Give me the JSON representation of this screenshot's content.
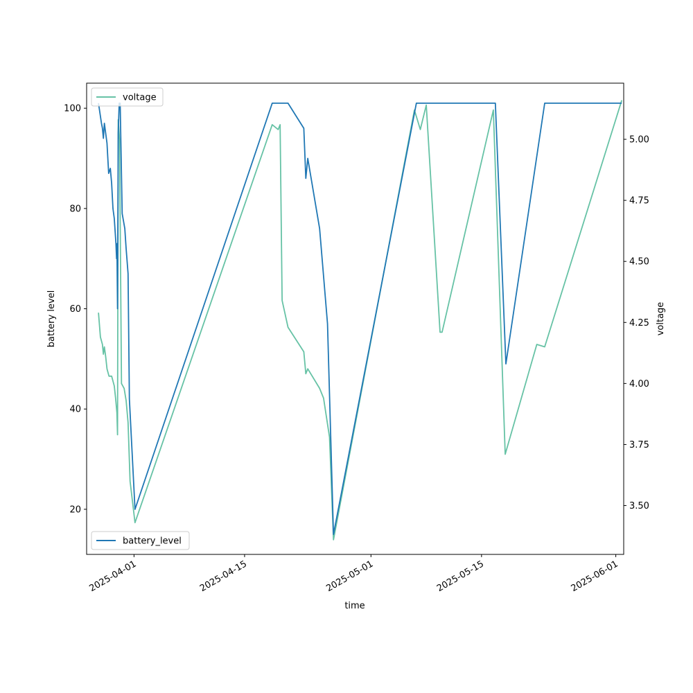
{
  "chart_data": {
    "type": "line",
    "xlabel": "time",
    "ylabel_left": "battery level",
    "ylabel_right": "voltage",
    "xlim": [
      "2025-03-26",
      "2025-06-02"
    ],
    "ylim_left": [
      11,
      105
    ],
    "ylim_right": [
      3.3,
      5.23
    ],
    "x_ticks": [
      "2025-04-01",
      "2025-04-15",
      "2025-05-01",
      "2025-05-15",
      "2025-06-01"
    ],
    "y_left_ticks": [
      20,
      40,
      60,
      80,
      100
    ],
    "y_right_ticks": [
      3.5,
      3.75,
      4.0,
      4.25,
      4.5,
      4.75,
      5.0
    ],
    "y_right_tick_labels": [
      "3.50",
      "3.75",
      "4.00",
      "4.25",
      "4.50",
      "4.75",
      "5.00"
    ],
    "grid": false,
    "legends": [
      {
        "placement": "top-left",
        "series": "voltage"
      },
      {
        "placement": "bottom-left",
        "series": "battery_level"
      }
    ],
    "series": [
      {
        "name": "battery_level",
        "axis": "left",
        "color": "#1f77b4",
        "points": [
          [
            "2025-03-27 12:00",
            101
          ],
          [
            "2025-03-27 21:00",
            97
          ],
          [
            "2025-03-28 00:00",
            96
          ],
          [
            "2025-03-28 03:00",
            94
          ],
          [
            "2025-03-28 06:00",
            97
          ],
          [
            "2025-03-28 10:00",
            95
          ],
          [
            "2025-03-28 14:00",
            93
          ],
          [
            "2025-03-28 19:00",
            87
          ],
          [
            "2025-03-29 00:00",
            88
          ],
          [
            "2025-03-29 04:00",
            85
          ],
          [
            "2025-03-29 08:00",
            80
          ],
          [
            "2025-03-29 12:00",
            78
          ],
          [
            "2025-03-29 17:00",
            73
          ],
          [
            "2025-03-29 19:00",
            70
          ],
          [
            "2025-03-29 20:00",
            73
          ],
          [
            "2025-03-29 22:00",
            60
          ],
          [
            "2025-03-30 00:00",
            95
          ],
          [
            "2025-03-30 03:00",
            101
          ],
          [
            "2025-03-30 06:00",
            101
          ],
          [
            "2025-03-30 12:00",
            79
          ],
          [
            "2025-03-30 20:00",
            76
          ],
          [
            "2025-03-31 00:00",
            72
          ],
          [
            "2025-03-31 06:00",
            67
          ],
          [
            "2025-03-31 10:00",
            42
          ],
          [
            "2025-04-01 03:00",
            20
          ],
          [
            "2025-04-18 12:00",
            101
          ],
          [
            "2025-04-20 12:00",
            101
          ],
          [
            "2025-04-22 12:00",
            96
          ],
          [
            "2025-04-22 18:00",
            86
          ],
          [
            "2025-04-23 00:00",
            90
          ],
          [
            "2025-04-24 12:00",
            76
          ],
          [
            "2025-04-25 12:00",
            57
          ],
          [
            "2025-04-26 06:00",
            15
          ],
          [
            "2025-05-06 18:00",
            101
          ],
          [
            "2025-05-16 18:00",
            101
          ],
          [
            "2025-05-18 02:00",
            49
          ],
          [
            "2025-05-23 00:00",
            101
          ],
          [
            "2025-06-01 18:00",
            101
          ]
        ]
      },
      {
        "name": "voltage",
        "axis": "right",
        "color": "#66c2a5",
        "points": [
          [
            "2025-03-27 12:00",
            4.29
          ],
          [
            "2025-03-27 18:00",
            4.19
          ],
          [
            "2025-03-28 00:00",
            4.16
          ],
          [
            "2025-03-28 03:00",
            4.12
          ],
          [
            "2025-03-28 06:00",
            4.15
          ],
          [
            "2025-03-28 10:00",
            4.11
          ],
          [
            "2025-03-28 14:00",
            4.06
          ],
          [
            "2025-03-28 20:00",
            4.03
          ],
          [
            "2025-03-29 04:00",
            4.03
          ],
          [
            "2025-03-29 12:00",
            3.99
          ],
          [
            "2025-03-29 16:00",
            3.94
          ],
          [
            "2025-03-29 20:00",
            3.88
          ],
          [
            "2025-03-29 22:00",
            3.79
          ],
          [
            "2025-03-30 00:00",
            5.08
          ],
          [
            "2025-03-30 04:00",
            5.0
          ],
          [
            "2025-03-30 10:00",
            4.0
          ],
          [
            "2025-03-30 18:00",
            3.98
          ],
          [
            "2025-03-31 00:00",
            3.93
          ],
          [
            "2025-03-31 06:00",
            3.84
          ],
          [
            "2025-03-31 12:00",
            3.6
          ],
          [
            "2025-04-01 03:00",
            3.43
          ],
          [
            "2025-04-18 12:00",
            5.06
          ],
          [
            "2025-04-19 06:00",
            5.04
          ],
          [
            "2025-04-19 12:00",
            5.06
          ],
          [
            "2025-04-19 18:00",
            4.34
          ],
          [
            "2025-04-20 12:00",
            4.23
          ],
          [
            "2025-04-22 12:00",
            4.13
          ],
          [
            "2025-04-22 18:00",
            4.04
          ],
          [
            "2025-04-23 00:00",
            4.06
          ],
          [
            "2025-04-24 12:00",
            3.98
          ],
          [
            "2025-04-25 00:00",
            3.94
          ],
          [
            "2025-04-25 18:00",
            3.78
          ],
          [
            "2025-04-26 06:00",
            3.36
          ],
          [
            "2025-05-06 12:00",
            5.12
          ],
          [
            "2025-05-07 06:00",
            5.04
          ],
          [
            "2025-05-08 00:00",
            5.14
          ],
          [
            "2025-05-09 18:00",
            4.21
          ],
          [
            "2025-05-10 00:00",
            4.21
          ],
          [
            "2025-05-16 12:00",
            5.12
          ],
          [
            "2025-05-18 00:00",
            3.71
          ],
          [
            "2025-05-22 00:00",
            4.16
          ],
          [
            "2025-05-23 00:00",
            4.15
          ],
          [
            "2025-06-01 18:00",
            5.16
          ]
        ]
      }
    ]
  }
}
